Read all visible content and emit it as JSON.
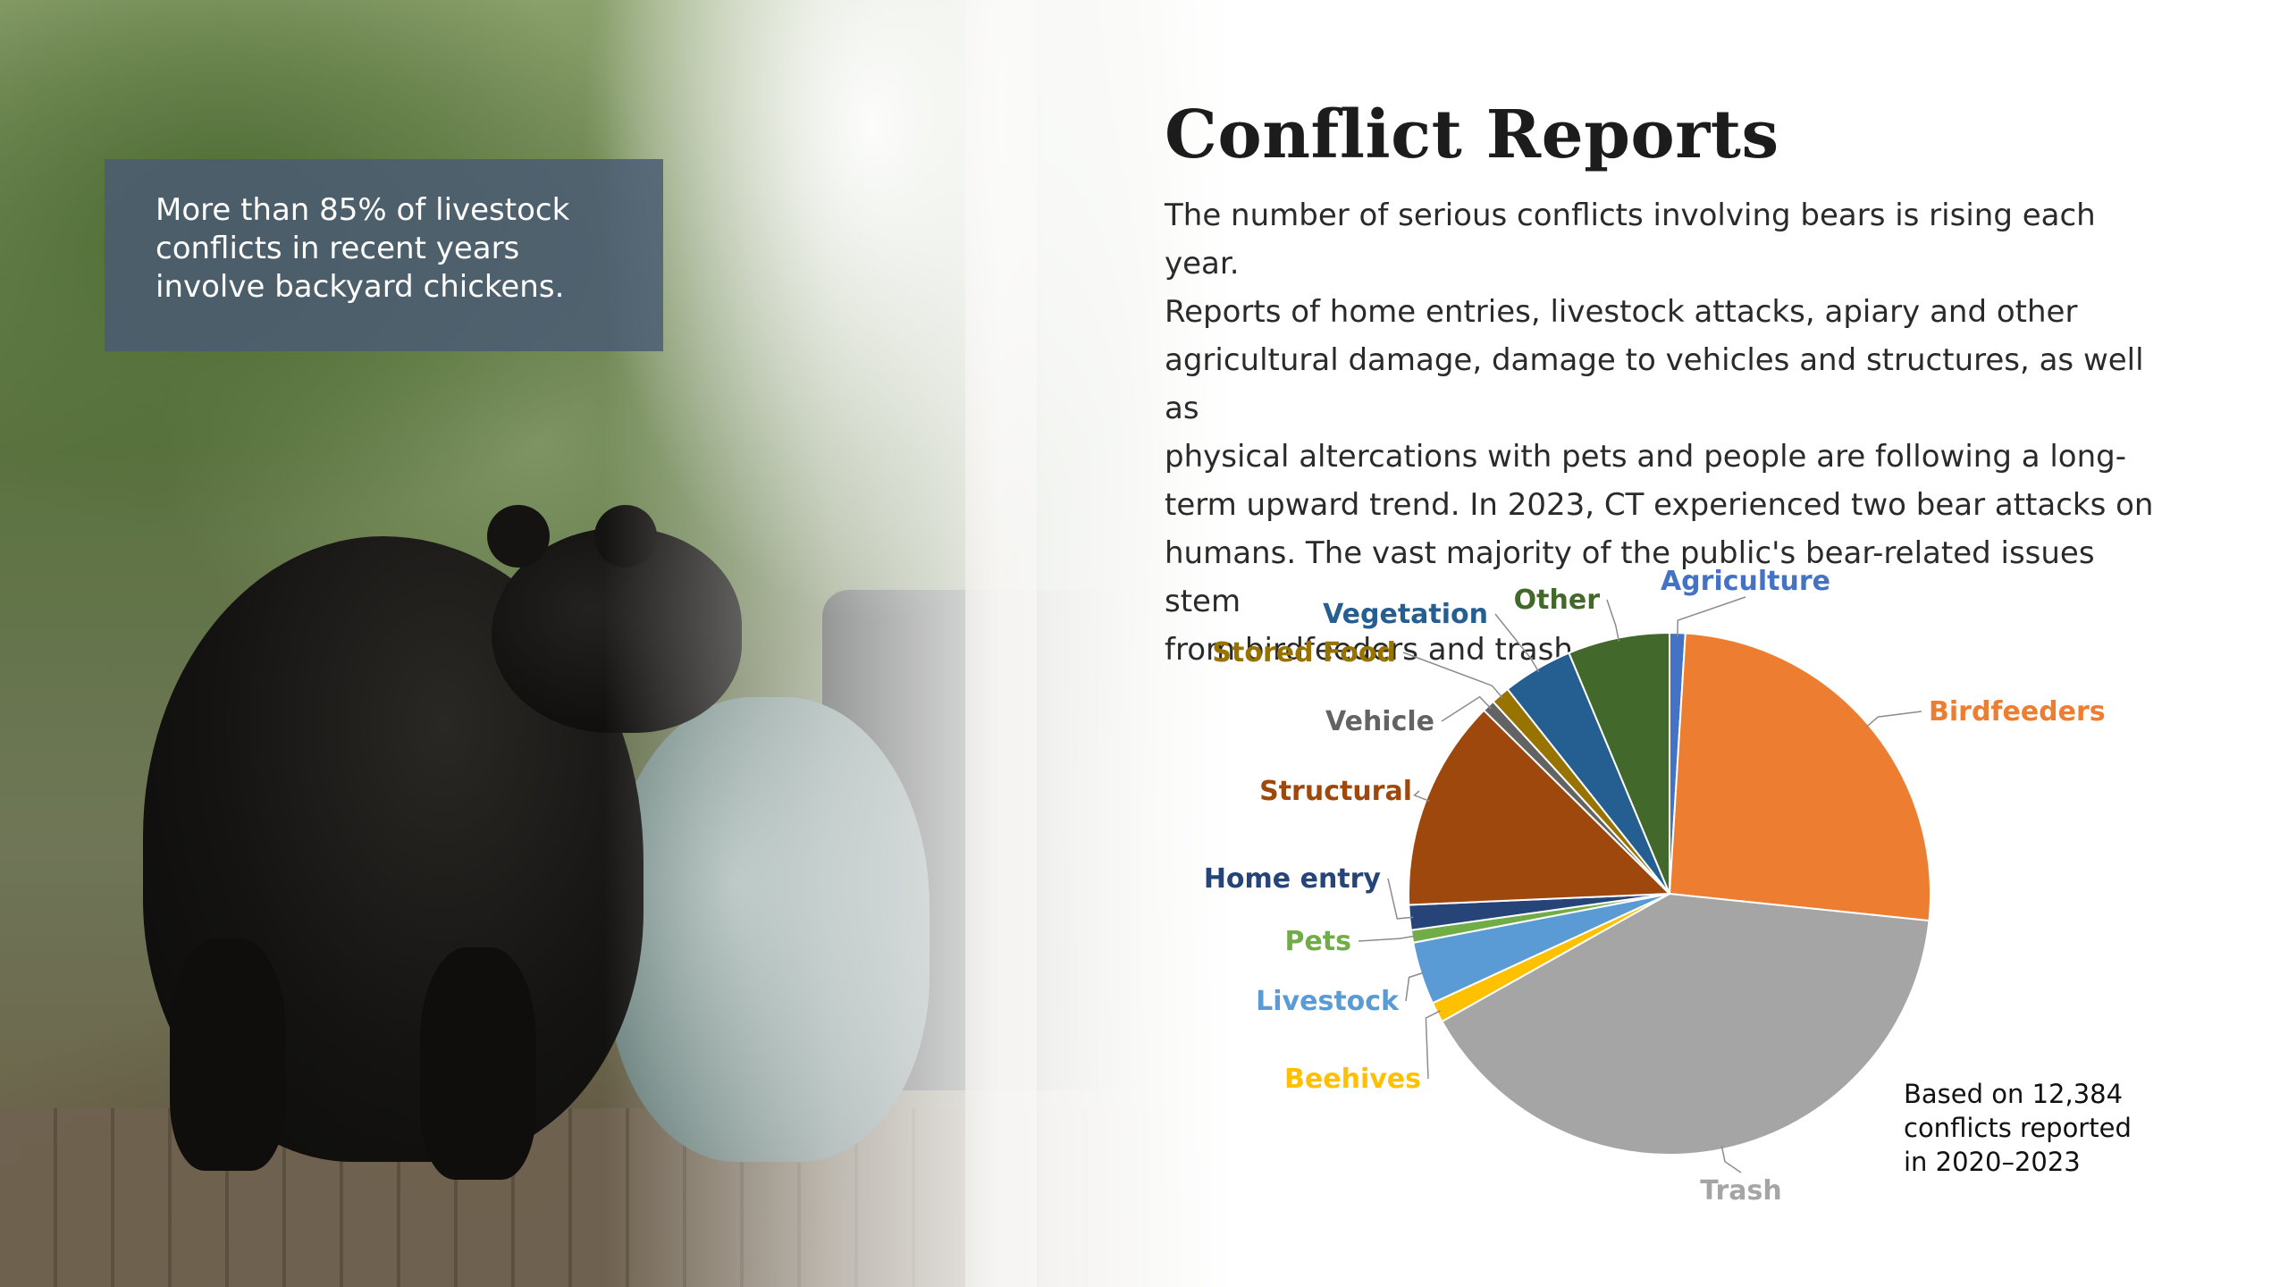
{
  "caption": {
    "lines": [
      "More than 85% of livestock",
      "conflicts in recent years",
      "involve backyard chickens."
    ]
  },
  "heading": "Conflict Reports",
  "body_lines": [
    "The number of serious conflicts involving bears is rising each year.",
    "Reports of home entries, livestock attacks, apiary and other",
    "agricultural damage, damage to vehicles and structures, as well as",
    "physical altercations with pets and people are following a long-",
    "term upward trend. In 2023, CT experienced two bear attacks on",
    "humans. The vast majority of the public's bear-related issues stem",
    "from birdfeeders and trash."
  ],
  "note_lines": [
    "Based on 12,384",
    "conflicts reported",
    "in 2020–2023"
  ],
  "chart_data": {
    "type": "pie",
    "title": "",
    "start_angle_deg": 0,
    "direction": "clockwise",
    "slices": [
      {
        "label": "Agriculture",
        "value": 1.0,
        "color": "#4472c4",
        "label_color": "#4472c4"
      },
      {
        "label": "Birdfeeders",
        "value": 26.5,
        "color": "#ed7d31",
        "label_color": "#ed7d31"
      },
      {
        "label": "Trash",
        "value": 41.5,
        "color": "#a5a5a5",
        "label_color": "#a5a5a5"
      },
      {
        "label": "Beehives",
        "value": 1.3,
        "color": "#ffc000",
        "label_color": "#ffc000"
      },
      {
        "label": "Livestock",
        "value": 4.0,
        "color": "#5b9bd5",
        "label_color": "#5b9bd5"
      },
      {
        "label": "Pets",
        "value": 0.8,
        "color": "#70ad47",
        "label_color": "#70ad47"
      },
      {
        "label": "Home entry",
        "value": 1.6,
        "color": "#264478",
        "label_color": "#264478"
      },
      {
        "label": "Structural",
        "value": 13.5,
        "color": "#9e480e",
        "label_color": "#9e480e"
      },
      {
        "label": "Vehicle",
        "value": 0.8,
        "color": "#636363",
        "label_color": "#636363"
      },
      {
        "label": "Stored Food",
        "value": 1.2,
        "color": "#997300",
        "label_color": "#997300"
      },
      {
        "label": "Vegetation",
        "value": 4.5,
        "color": "#255e91",
        "label_color": "#255e91"
      },
      {
        "label": "Other",
        "value": 6.5,
        "color": "#43682b",
        "label_color": "#43682b"
      }
    ],
    "legend": "none",
    "data_labels": "category names with leader lines"
  }
}
